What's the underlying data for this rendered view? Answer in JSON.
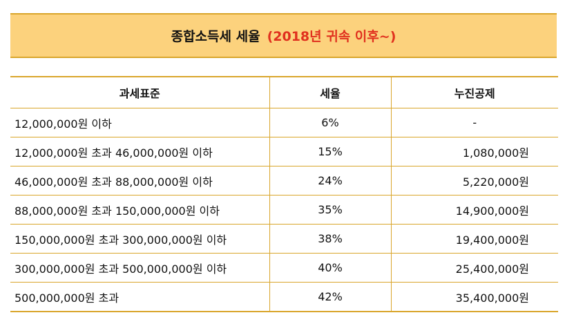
{
  "title": {
    "main": "종합소득세 세율",
    "sub": "(2018년 귀속 이후~)"
  },
  "table": {
    "headers": [
      "과세표준",
      "세율",
      "누진공제"
    ],
    "rows": [
      {
        "base": "12,000,000원 이하",
        "rate": "6%",
        "deduction": "-"
      },
      {
        "base": "12,000,000원 초과 46,000,000원 이하",
        "rate": "15%",
        "deduction": "1,080,000원"
      },
      {
        "base": "46,000,000원 초과 88,000,000원 이하",
        "rate": "24%",
        "deduction": "5,220,000원"
      },
      {
        "base": "88,000,000원 초과 150,000,000원 이하",
        "rate": "35%",
        "deduction": "14,900,000원"
      },
      {
        "base": "150,000,000원 초과 300,000,000원 이하",
        "rate": "38%",
        "deduction": "19,400,000원"
      },
      {
        "base": "300,000,000원 초과 500,000,000원 이하",
        "rate": "40%",
        "deduction": "25,400,000원"
      },
      {
        "base": "500,000,000원 초과",
        "rate": "42%",
        "deduction": "35,400,000원"
      }
    ]
  },
  "colors": {
    "banner_bg": "#fcd27d",
    "border": "#d9a52a",
    "subtitle": "#e0301e"
  }
}
